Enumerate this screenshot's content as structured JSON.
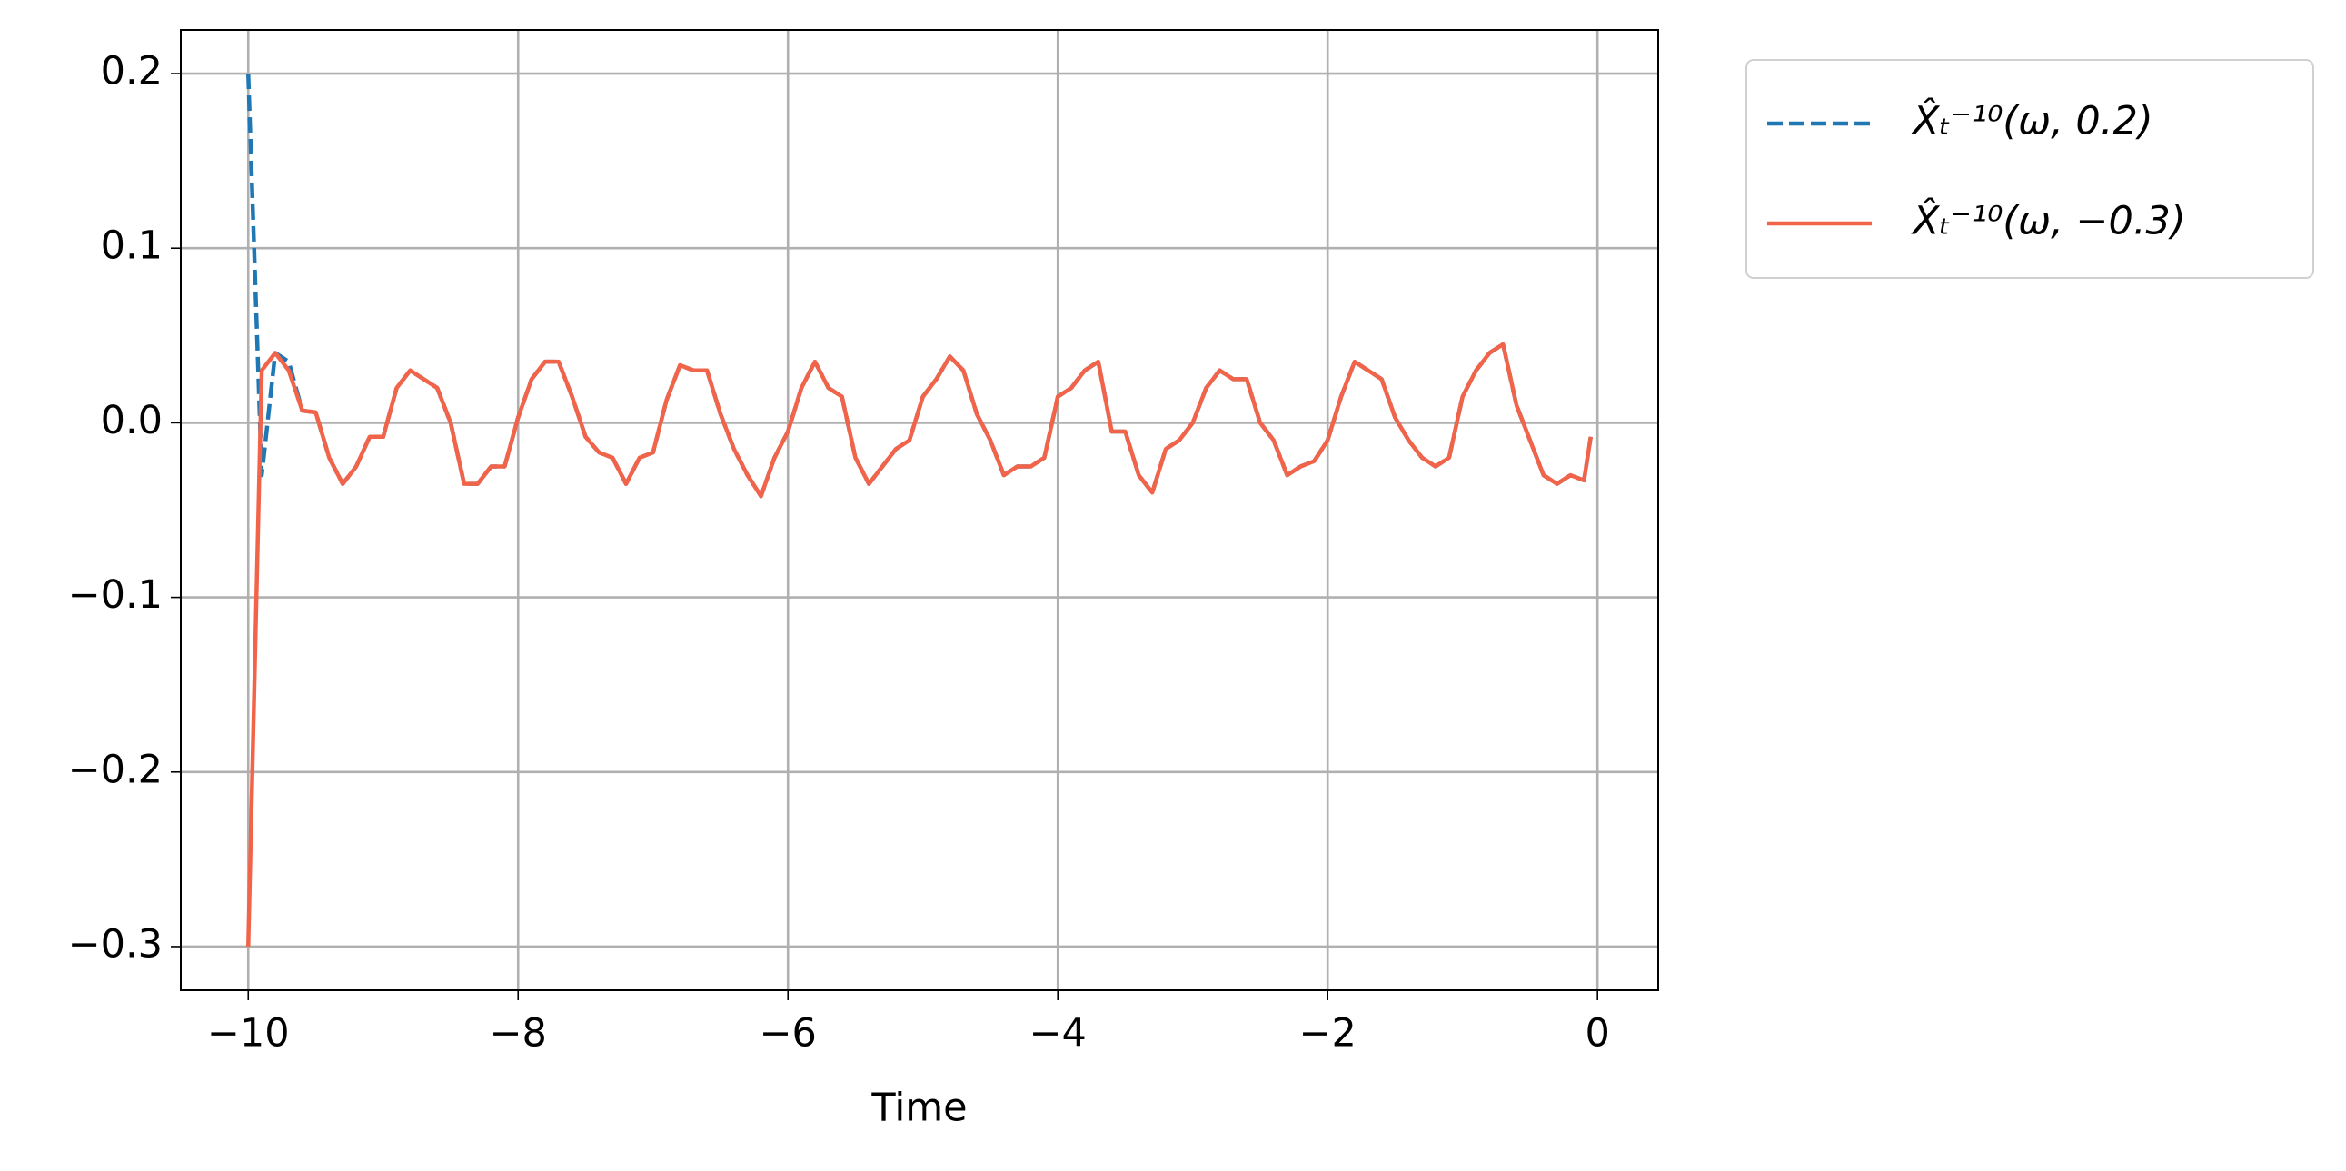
{
  "chart_data": {
    "type": "line",
    "xlabel": "Time",
    "x": [
      -10,
      -9.9,
      -9.8,
      -9.7,
      -9.6,
      -9.5,
      -9.4,
      -9.3,
      -9.2,
      -9.1,
      -9,
      -8.9,
      -8.8,
      -8.7,
      -8.6,
      -8.5,
      -8.4,
      -8.3,
      -8.2,
      -8.1,
      -8,
      -7.9,
      -7.8,
      -7.7,
      -7.6,
      -7.5,
      -7.4,
      -7.3,
      -7.2,
      -7.1,
      -7,
      -6.9,
      -6.8,
      -6.7,
      -6.6,
      -6.5,
      -6.4,
      -6.3,
      -6.2,
      -6.1,
      -6,
      -5.9,
      -5.8,
      -5.7,
      -5.6,
      -5.5,
      -5.4,
      -5.3,
      -5.2,
      -5.1,
      -5,
      -4.9,
      -4.8,
      -4.7,
      -4.6,
      -4.5,
      -4.4,
      -4.3,
      -4.2,
      -4.1,
      -4,
      -3.9,
      -3.8,
      -3.7,
      -3.6,
      -3.5,
      -3.4,
      -3.3,
      -3.2,
      -3.1,
      -3,
      -2.9,
      -2.8,
      -2.7,
      -2.6,
      -2.5,
      -2.4,
      -2.3,
      -2.2,
      -2.1,
      -2,
      -1.9,
      -1.8,
      -1.7,
      -1.6,
      -1.5,
      -1.4,
      -1.3,
      -1.2,
      -1.1,
      -1,
      -0.9,
      -0.8,
      -0.7,
      -0.6,
      -0.5,
      -0.4,
      -0.3,
      -0.2,
      -0.1,
      -0.05
    ],
    "series": [
      {
        "name": "X̂ₜ⁻¹⁰(ω, 0.2)",
        "color": "#1f77b4",
        "dash": true,
        "values": [
          0.2,
          -0.03,
          0.04,
          0.035,
          0.007,
          0.006,
          -0.02,
          -0.035,
          -0.025,
          -0.008,
          -0.008,
          0.02,
          0.03,
          0.025,
          0.02,
          0.0,
          -0.035,
          -0.035,
          -0.025,
          -0.025,
          0.003,
          0.025,
          0.035,
          0.035,
          0.015,
          -0.008,
          -0.017,
          -0.02,
          -0.035,
          -0.02,
          -0.017,
          0.013,
          0.033,
          0.03,
          0.03,
          0.005,
          -0.015,
          -0.03,
          -0.042,
          -0.02,
          -0.005,
          0.02,
          0.035,
          0.02,
          0.015,
          -0.02,
          -0.035,
          -0.025,
          -0.015,
          -0.01,
          0.015,
          0.025,
          0.038,
          0.03,
          0.005,
          -0.01,
          -0.03,
          -0.025,
          -0.025,
          -0.02,
          0.015,
          0.02,
          0.03,
          0.035,
          -0.005,
          -0.005,
          -0.03,
          -0.04,
          -0.015,
          -0.01,
          0.0,
          0.02,
          0.03,
          0.025,
          0.025,
          0.0,
          -0.01,
          -0.03,
          -0.025,
          -0.022,
          -0.01,
          0.015,
          0.035,
          0.03,
          0.025,
          0.003,
          -0.01,
          -0.02,
          -0.025,
          -0.02,
          0.015,
          0.03,
          0.04,
          0.045,
          0.01,
          -0.01,
          -0.03,
          -0.035,
          -0.03,
          -0.033,
          -0.008
        ]
      },
      {
        "name": "X̂ₜ⁻¹⁰(ω, −0.3)",
        "color": "#f26449",
        "dash": false,
        "values": [
          -0.3,
          0.03,
          0.04,
          0.03,
          0.007,
          0.006,
          -0.02,
          -0.035,
          -0.025,
          -0.008,
          -0.008,
          0.02,
          0.03,
          0.025,
          0.02,
          0.0,
          -0.035,
          -0.035,
          -0.025,
          -0.025,
          0.003,
          0.025,
          0.035,
          0.035,
          0.015,
          -0.008,
          -0.017,
          -0.02,
          -0.035,
          -0.02,
          -0.017,
          0.013,
          0.033,
          0.03,
          0.03,
          0.005,
          -0.015,
          -0.03,
          -0.042,
          -0.02,
          -0.005,
          0.02,
          0.035,
          0.02,
          0.015,
          -0.02,
          -0.035,
          -0.025,
          -0.015,
          -0.01,
          0.015,
          0.025,
          0.038,
          0.03,
          0.005,
          -0.01,
          -0.03,
          -0.025,
          -0.025,
          -0.02,
          0.015,
          0.02,
          0.03,
          0.035,
          -0.005,
          -0.005,
          -0.03,
          -0.04,
          -0.015,
          -0.01,
          0.0,
          0.02,
          0.03,
          0.025,
          0.025,
          0.0,
          -0.01,
          -0.03,
          -0.025,
          -0.022,
          -0.01,
          0.015,
          0.035,
          0.03,
          0.025,
          0.003,
          -0.01,
          -0.02,
          -0.025,
          -0.02,
          0.015,
          0.03,
          0.04,
          0.045,
          0.01,
          -0.01,
          -0.03,
          -0.035,
          -0.03,
          -0.033,
          -0.008
        ]
      }
    ],
    "xlim": [
      -10.5,
      0.45
    ],
    "ylim": [
      -0.325,
      0.225
    ],
    "xticks": [
      {
        "value": -10,
        "label": "−10"
      },
      {
        "value": -8,
        "label": "−8"
      },
      {
        "value": -6,
        "label": "−6"
      },
      {
        "value": -4,
        "label": "−4"
      },
      {
        "value": -2,
        "label": "−2"
      },
      0
    ],
    "yticks": [
      {
        "value": -0.3,
        "label": "−0.3"
      },
      {
        "value": -0.2,
        "label": "−0.2"
      },
      {
        "value": -0.1,
        "label": "−0.1"
      },
      {
        "value": 0,
        "label": "0.0"
      },
      0.1,
      0.2
    ],
    "grid": true,
    "legend": "outside upper right"
  }
}
